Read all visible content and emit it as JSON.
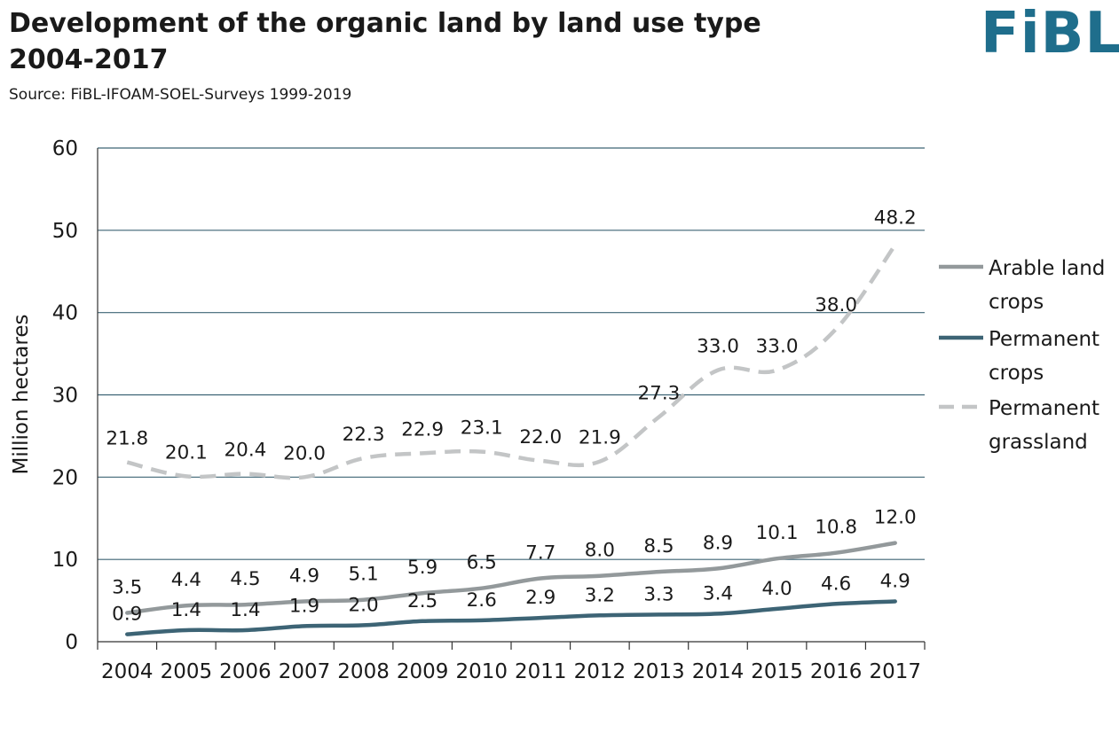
{
  "header": {
    "title_line1": "Development of the organic land by land use type",
    "title_line2": "2004-2017",
    "source": "Source: FiBL-IFOAM-SOEL-Surveys 1999-2019",
    "logo_text": "FiBL"
  },
  "colors": {
    "arable": "#93999b",
    "permanent_crops": "#3d6475",
    "grassland": "#c3c5c6",
    "gridline": "#3d6475",
    "logo": "#1f6e8c"
  },
  "chart_data": {
    "type": "line",
    "title": "Development of the organic land by land use type 2004-2017",
    "xlabel": "",
    "ylabel": "Million hectares",
    "ylim": [
      0,
      60
    ],
    "yticks": [
      0,
      10,
      20,
      30,
      40,
      50,
      60
    ],
    "grid": true,
    "legend_position": "right",
    "categories": [
      "2004",
      "2005",
      "2006",
      "2007",
      "2008",
      "2009",
      "2010",
      "2011",
      "2012",
      "2013",
      "2014",
      "2015",
      "2016",
      "2017"
    ],
    "series": [
      {
        "key": "arable",
        "name": "Arable land crops",
        "legend_lines": [
          "Arable land",
          "crops"
        ],
        "style": "solid",
        "color": "#93999b",
        "values": [
          3.5,
          4.4,
          4.5,
          4.9,
          5.1,
          5.9,
          6.5,
          7.7,
          8.0,
          8.5,
          8.9,
          10.1,
          10.8,
          12.0
        ],
        "labels": [
          "3.5",
          "4.4",
          "4.5",
          "4.9",
          "5.1",
          "5.9",
          "6.5",
          "7.7",
          "8.0",
          "8.5",
          "8.9",
          "10.1",
          "10.8",
          "12.0"
        ]
      },
      {
        "key": "permanent_crops",
        "name": "Permanent crops",
        "legend_lines": [
          "Permanent",
          "crops"
        ],
        "style": "solid",
        "color": "#3d6475",
        "values": [
          0.9,
          1.4,
          1.4,
          1.9,
          2.0,
          2.5,
          2.6,
          2.9,
          3.2,
          3.3,
          3.4,
          4.0,
          4.6,
          4.9
        ],
        "labels": [
          "0.9",
          "1.4",
          "1.4",
          "1.9",
          "2.0",
          "2.5",
          "2.6",
          "2.9",
          "3.2",
          "3.3",
          "3.4",
          "4.0",
          "4.6",
          "4.9"
        ]
      },
      {
        "key": "grassland",
        "name": "Permanent grassland",
        "legend_lines": [
          "Permanent",
          "grassland"
        ],
        "style": "dashed",
        "color": "#c3c5c6",
        "values": [
          21.8,
          20.1,
          20.4,
          20.0,
          22.3,
          22.9,
          23.1,
          22.0,
          21.9,
          27.3,
          33.0,
          33.0,
          38.0,
          48.2
        ],
        "labels": [
          "21.8",
          "20.1",
          "20.4",
          "20.0",
          "22.3",
          "22.9",
          "23.1",
          "22.0",
          "21.9",
          "27.3",
          "33.0",
          "33.0",
          "38.0",
          "48.2"
        ]
      }
    ]
  }
}
